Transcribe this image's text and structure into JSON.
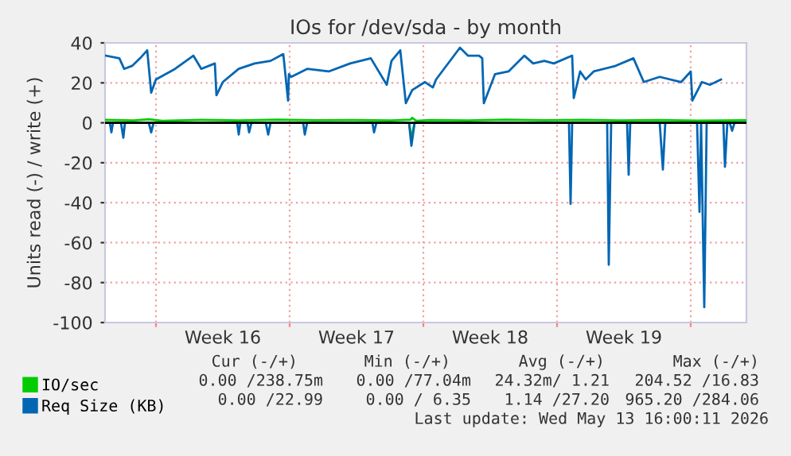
{
  "chart_data": {
    "type": "line",
    "title": "IOs for /dev/sda - by month",
    "ylabel": "Units read (-) / write (+)",
    "xlim": [
      "2026-04-10T08:00",
      "2026-05-13T22:00"
    ],
    "ylim": [
      -100,
      40
    ],
    "xticks": [
      {
        "value": "2026-04-13T00:00",
        "label": null
      },
      {
        "value": "2026-04-16T12:00",
        "label": "Week 16"
      },
      {
        "value": "2026-04-20T00:00",
        "label": null
      },
      {
        "value": "2026-04-23T12:00",
        "label": "Week 17"
      },
      {
        "value": "2026-04-27T00:00",
        "label": null
      },
      {
        "value": "2026-04-30T12:00",
        "label": "Week 18"
      },
      {
        "value": "2026-05-04T00:00",
        "label": null
      },
      {
        "value": "2026-05-07T12:00",
        "label": "Week 19"
      },
      {
        "value": "2026-05-11T00:00",
        "label": null
      }
    ],
    "yticks": [
      -100,
      -80,
      -60,
      -40,
      -20,
      0,
      20,
      40
    ],
    "grid": true,
    "legend": "bottom",
    "marker": "none",
    "line_style": "solid",
    "ref_lines": [
      {
        "axis": "y",
        "value": 0,
        "label": null,
        "color": "#000000"
      }
    ],
    "series": [
      {
        "name": "IO/sec",
        "color": "#00cc00",
        "x": [
          "2026-04-10T08:00",
          "2026-04-11T20:00",
          "2026-04-12T15:00",
          "2026-04-13T08:00",
          "2026-04-15T08:00",
          "2026-04-17T08:00",
          "2026-04-19T08:00",
          "2026-04-21T08:00",
          "2026-04-23T08:00",
          "2026-04-25T08:00",
          "2026-04-26T08:00",
          "2026-04-26T10:00",
          "2026-04-26T15:00",
          "2026-04-27T08:00",
          "2026-04-29T08:00",
          "2026-05-01T08:00",
          "2026-05-03T08:00",
          "2026-05-05T08:00",
          "2026-05-07T08:00",
          "2026-05-09T08:00",
          "2026-05-11T08:00",
          "2026-05-13T22:00"
        ],
        "values": [
          1.5,
          1.2,
          1.8,
          1.0,
          1.5,
          1.2,
          1.6,
          1.3,
          1.4,
          1.2,
          1.6,
          2.5,
          1.0,
          1.4,
          1.2,
          1.6,
          1.3,
          1.5,
          1.2,
          1.4,
          1.1,
          1.3
        ]
      },
      {
        "color": "#00cc00",
        "x": [
          "2026-04-10T08:00",
          "2026-04-26T06:00",
          "2026-04-26T09:00",
          "2026-04-26T13:00",
          "2026-05-13T22:00"
        ],
        "values": [
          0,
          0,
          -7.5,
          0,
          0
        ]
      },
      {
        "name": "Req Size (KB)",
        "color": "#0066b3",
        "x": [
          "2026-04-10T09:00",
          "2026-04-11T02:00",
          "2026-04-11T08:00",
          "2026-04-11T18:00",
          "2026-04-12T04:00",
          "2026-04-12T13:00",
          "2026-04-12T18:00",
          "2026-04-13T00:00",
          "2026-04-14T00:00",
          "2026-04-14T23:00",
          "2026-04-15T09:00",
          "2026-04-16T02:00",
          "2026-04-16T04:00",
          "2026-04-16T12:00",
          "2026-04-17T08:00",
          "2026-04-18T04:00",
          "2026-04-19T00:00",
          "2026-04-19T16:00",
          "2026-04-19T22:00",
          "2026-04-19T23:00",
          "2026-04-20T02:00",
          "2026-04-20T22:00",
          "2026-04-22T01:00",
          "2026-04-23T04:00",
          "2026-04-24T06:00",
          "2026-04-25T02:00",
          "2026-04-25T08:00",
          "2026-04-25T19:00",
          "2026-04-26T02:00",
          "2026-04-26T10:00",
          "2026-04-27T02:00",
          "2026-04-27T12:00",
          "2026-04-27T16:00",
          "2026-04-28T22:00",
          "2026-04-29T08:00",
          "2026-04-29T22:00",
          "2026-04-30T02:00",
          "2026-04-30T04:00",
          "2026-04-30T18:00",
          "2026-05-01T11:00",
          "2026-05-02T07:00",
          "2026-05-02T18:00",
          "2026-05-03T08:00",
          "2026-05-03T20:00",
          "2026-05-04T19:00",
          "2026-05-04T21:00",
          "2026-05-05T05:00",
          "2026-05-05T12:00",
          "2026-05-05T22:00",
          "2026-05-07T00:00",
          "2026-05-08T00:00",
          "2026-05-08T13:00",
          "2026-05-09T09:00",
          "2026-05-10T12:00",
          "2026-05-11T00:00",
          "2026-05-11T02:00",
          "2026-05-11T14:00",
          "2026-05-12T00:00",
          "2026-05-12T14:00"
        ],
        "values": [
          33.6,
          32.3,
          27,
          28.5,
          32.3,
          36.3,
          15.1,
          21.7,
          27,
          33.6,
          27,
          29.7,
          13.8,
          20.4,
          27,
          29.7,
          31,
          34.4,
          11.1,
          24.3,
          23,
          27,
          25.7,
          29.7,
          32.3,
          19,
          31,
          36.3,
          9.8,
          16.4,
          20.4,
          17.7,
          21.7,
          37.6,
          33.6,
          33.6,
          32.3,
          9.8,
          24.3,
          25.7,
          33.6,
          29.7,
          31,
          29.7,
          33.6,
          12.4,
          25.7,
          21.7,
          25.7,
          28.3,
          32.3,
          20.4,
          23,
          20.4,
          25.7,
          11.1,
          20.4,
          19,
          21.7
        ]
      },
      {
        "color": "#0066b3",
        "x": [
          "2026-04-10T08:00",
          "2026-04-10T14:00",
          "2026-04-10T16:00",
          "2026-04-10T18:00",
          "2026-04-11T04:00",
          "2026-04-11T07:00",
          "2026-04-11T09:00",
          "2026-04-12T15:00",
          "2026-04-12T18:00",
          "2026-04-12T21:00",
          "2026-04-17T06:00",
          "2026-04-17T08:00",
          "2026-04-17T10:00",
          "2026-04-17T19:00",
          "2026-04-17T21:00",
          "2026-04-18T00:00",
          "2026-04-18T18:00",
          "2026-04-18T21:00",
          "2026-04-19T00:00",
          "2026-04-20T17:00",
          "2026-04-20T19:00",
          "2026-04-20T22:00",
          "2026-04-24T08:00",
          "2026-04-24T10:00",
          "2026-04-24T13:00",
          "2026-04-26T06:00",
          "2026-04-26T09:00",
          "2026-04-26T13:00",
          "2026-05-04T15:00",
          "2026-05-04T17:00",
          "2026-05-04T19:00",
          "2026-05-06T15:00",
          "2026-05-06T17:00",
          "2026-05-06T20:00",
          "2026-05-07T16:00",
          "2026-05-07T18:00",
          "2026-05-07T20:00",
          "2026-05-09T09:00",
          "2026-05-09T13:00",
          "2026-05-09T16:00",
          "2026-05-11T08:00",
          "2026-05-11T11:00",
          "2026-05-11T13:00",
          "2026-05-11T17:00",
          "2026-05-11T20:00",
          "2026-05-12T17:00",
          "2026-05-12T19:00",
          "2026-05-12T22:00",
          "2026-05-13T01:00",
          "2026-05-13T04:00",
          "2026-05-13T07:00",
          "2026-05-13T22:00"
        ],
        "values": [
          0,
          0,
          -4.8,
          0,
          0,
          -7.5,
          0,
          0,
          -4.8,
          0,
          0,
          -5.9,
          0,
          0,
          -4.8,
          0,
          0,
          -5.9,
          0,
          0,
          -5.9,
          0,
          0,
          -4.8,
          0,
          0,
          -11.5,
          0,
          0,
          -40.6,
          0,
          0,
          -71.1,
          0,
          0,
          -26,
          0,
          0,
          -23.4,
          0,
          0,
          -44.6,
          0,
          -92.3,
          0,
          0,
          -22,
          0,
          0,
          -4,
          0,
          0
        ]
      }
    ],
    "annotations": [
      "Cur (-/+)",
      "Min (-/+)",
      "Avg (-/+)",
      "Max (-/+)",
      "0.00 /238.75m",
      "0.00 /77.04m",
      "24.32m/ 1.21",
      "204.52 /16.83",
      "0.00 /22.99",
      "0.00 / 6.35",
      "1.14 /27.20",
      "965.20 /284.06",
      "Last update: Wed May 13 16:00:11 2026"
    ]
  }
}
